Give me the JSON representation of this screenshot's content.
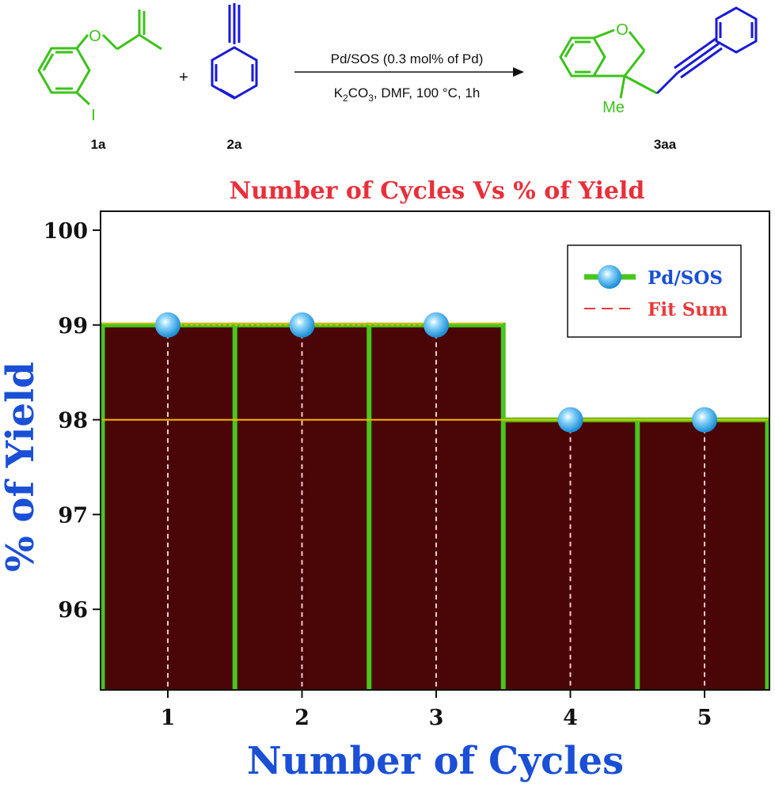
{
  "scheme": {
    "compounds": [
      {
        "id": "1a",
        "substituents": [
          "O",
          "I"
        ],
        "color": "#3cc21a"
      },
      {
        "id": "2a",
        "color": "#1a1ad6"
      },
      {
        "id": "3aa",
        "substituents": [
          "O",
          "Me"
        ],
        "color": "#3cc21a"
      }
    ],
    "plus": "+",
    "condition_top": "Pd/SOS (0.3 mol% of Pd)",
    "condition_bottom_prefix": "K",
    "condition_bottom_sub1": "2",
    "condition_bottom_mid": "CO",
    "condition_bottom_sub2": "3",
    "condition_bottom_rest": ", DMF, 100 °C, 1h"
  },
  "chart_data": {
    "type": "bar",
    "title": "Number of Cycles Vs % of Yield",
    "xlabel": "Number of Cycles",
    "ylabel": "% of Yield",
    "categories": [
      "1",
      "2",
      "3",
      "4",
      "5"
    ],
    "series": [
      {
        "name": "Pd/SOS",
        "values": [
          99,
          99,
          99,
          98,
          98
        ]
      }
    ],
    "fit_line_value": 98,
    "ylim": [
      95.15,
      100.2
    ],
    "yticks": [
      96,
      97,
      98,
      99,
      100
    ],
    "legend": {
      "position": "top-right",
      "entries": [
        "Pd/SOS",
        "Fit Sum"
      ]
    },
    "colors": {
      "title": "#e8303a",
      "axis_label": "#1a4fd6",
      "bar_fill": "#4a0606",
      "bar_edge": "#46c61e",
      "fit_line": "#f5b800",
      "marker": "#45b8f0",
      "drop_line": "#f6c8d4",
      "legend_fit_sum": "#e83a3a"
    }
  }
}
